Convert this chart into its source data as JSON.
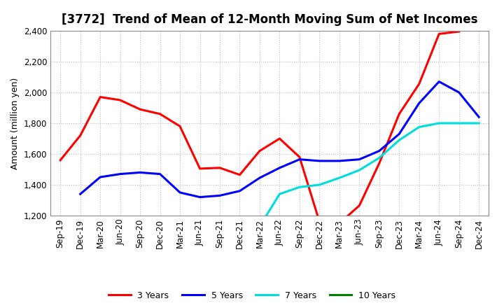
{
  "title": "[3772]  Trend of Mean of 12-Month Moving Sum of Net Incomes",
  "ylabel": "Amount (million yen)",
  "ylim": [
    1200,
    2400
  ],
  "yticks": [
    1200,
    1400,
    1600,
    1800,
    2000,
    2200,
    2400
  ],
  "x_labels": [
    "Sep-19",
    "Dec-19",
    "Mar-20",
    "Jun-20",
    "Sep-20",
    "Dec-20",
    "Mar-21",
    "Jun-21",
    "Sep-21",
    "Dec-21",
    "Mar-22",
    "Jun-22",
    "Sep-22",
    "Dec-22",
    "Mar-23",
    "Jun-23",
    "Sep-23",
    "Dec-23",
    "Mar-24",
    "Jun-24",
    "Sep-24",
    "Dec-24"
  ],
  "series": {
    "3 Years": {
      "color": "#FF0000",
      "data_x": [
        0,
        1,
        2,
        3,
        4,
        5,
        6,
        7,
        8,
        9,
        10,
        11,
        12,
        13,
        14,
        15,
        16,
        17,
        18,
        19,
        20
      ],
      "data_y": [
        1560,
        1720,
        1970,
        1950,
        1890,
        1860,
        1780,
        1505,
        1510,
        1465,
        1620,
        1700,
        1580,
        1160,
        1150,
        1265,
        1540,
        1860,
        2055,
        2380,
        2395
      ]
    },
    "5 Years": {
      "color": "#0000FF",
      "data_x": [
        1,
        2,
        3,
        4,
        5,
        6,
        7,
        8,
        9,
        10,
        11,
        12,
        13,
        14,
        15,
        16,
        17,
        18,
        19,
        20,
        21
      ],
      "data_y": [
        1340,
        1450,
        1470,
        1480,
        1470,
        1350,
        1320,
        1330,
        1360,
        1445,
        1510,
        1565,
        1555,
        1555,
        1565,
        1620,
        1730,
        1930,
        2070,
        2000,
        1840
      ]
    },
    "7 Years": {
      "color": "#00DDDD",
      "data_x": [
        10,
        11,
        12,
        13,
        14,
        15,
        16,
        17,
        18,
        19,
        20,
        21
      ],
      "data_y": [
        1130,
        1340,
        1385,
        1400,
        1445,
        1495,
        1575,
        1690,
        1775,
        1800,
        1800,
        1800
      ]
    },
    "10 Years": {
      "color": "#008000",
      "data_x": [],
      "data_y": []
    }
  },
  "background_color": "#FFFFFF",
  "grid_color": "#BBBBBB",
  "linewidth": 2.2,
  "title_fontsize": 12,
  "tick_fontsize": 8.5,
  "ylabel_fontsize": 9
}
